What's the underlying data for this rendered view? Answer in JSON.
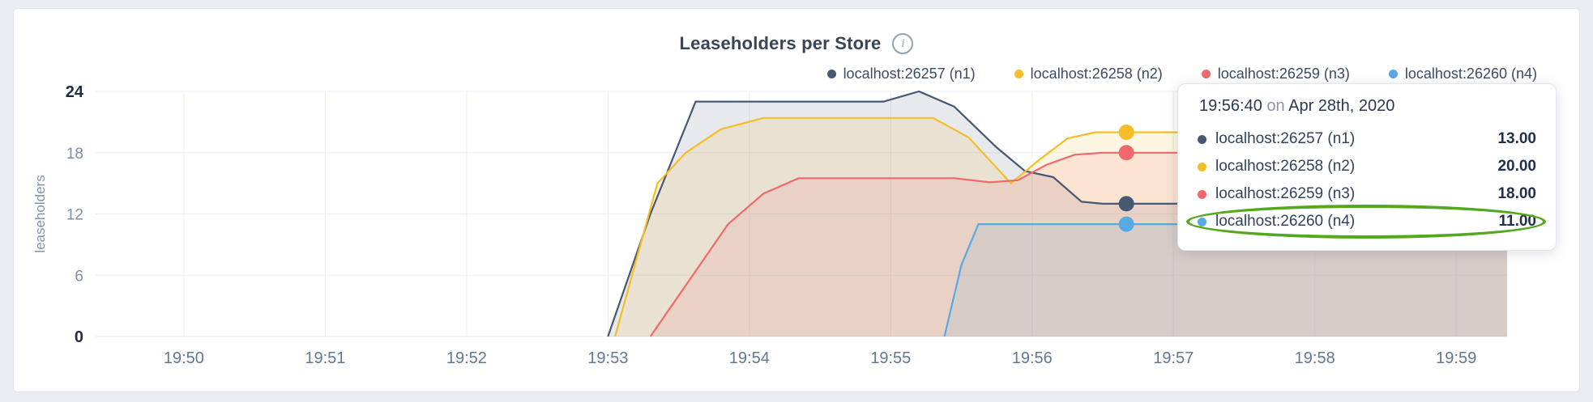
{
  "page": {
    "background": "#e9edf2"
  },
  "header": {
    "title": "Leaseholders per Store",
    "info_icon": "i"
  },
  "chart_data": {
    "type": "area",
    "title": "Leaseholders per Store",
    "ylabel": "leaseholders",
    "xlabel": "",
    "legend_position": "top-right",
    "grid": true,
    "grid_color": "#e9edf3",
    "fill_opacity": 0.13,
    "xlim": [
      49.37,
      59.36
    ],
    "ylim": [
      0,
      24
    ],
    "x_ticks": [
      {
        "t": 50,
        "label": "19:50"
      },
      {
        "t": 51,
        "label": "19:51"
      },
      {
        "t": 52,
        "label": "19:52"
      },
      {
        "t": 53,
        "label": "19:53"
      },
      {
        "t": 54,
        "label": "19:54"
      },
      {
        "t": 55,
        "label": "19:55"
      },
      {
        "t": 56,
        "label": "19:56"
      },
      {
        "t": 57,
        "label": "19:57"
      },
      {
        "t": 58,
        "label": "19:58"
      },
      {
        "t": 59,
        "label": "19:59"
      }
    ],
    "y_ticks": [
      {
        "v": 0,
        "label": "0",
        "bold": true
      },
      {
        "v": 6,
        "label": "6",
        "bold": false
      },
      {
        "v": 12,
        "label": "12",
        "bold": false
      },
      {
        "v": 18,
        "label": "18",
        "bold": false
      },
      {
        "v": 24,
        "label": "24",
        "bold": true
      }
    ],
    "series": [
      {
        "name": "localhost:26257 (n1)",
        "color": "#475872",
        "points": [
          [
            53.0,
            0
          ],
          [
            53.3,
            12
          ],
          [
            53.62,
            23
          ],
          [
            54.95,
            23
          ],
          [
            55.2,
            24
          ],
          [
            55.45,
            22.5
          ],
          [
            55.75,
            18.5
          ],
          [
            55.95,
            16.2
          ],
          [
            56.15,
            15.6
          ],
          [
            56.35,
            13.2
          ],
          [
            56.5,
            13
          ],
          [
            59.36,
            13
          ]
        ]
      },
      {
        "name": "localhost:26258 (n2)",
        "color": "#f5bd27",
        "points": [
          [
            53.05,
            0
          ],
          [
            53.35,
            15
          ],
          [
            53.55,
            18
          ],
          [
            53.8,
            20.3
          ],
          [
            54.1,
            21.4
          ],
          [
            55.3,
            21.4
          ],
          [
            55.55,
            19.5
          ],
          [
            55.85,
            15.0
          ],
          [
            56.05,
            17.3
          ],
          [
            56.25,
            19.4
          ],
          [
            56.45,
            20
          ],
          [
            59.36,
            20
          ]
        ]
      },
      {
        "name": "localhost:26259 (n3)",
        "color": "#f0696c",
        "points": [
          [
            53.3,
            0
          ],
          [
            53.6,
            6
          ],
          [
            53.85,
            11
          ],
          [
            54.1,
            14
          ],
          [
            54.35,
            15.5
          ],
          [
            55.45,
            15.5
          ],
          [
            55.7,
            15.1
          ],
          [
            55.9,
            15.3
          ],
          [
            56.1,
            16.8
          ],
          [
            56.3,
            17.8
          ],
          [
            56.5,
            18
          ],
          [
            59.36,
            18
          ]
        ]
      },
      {
        "name": "localhost:26260 (n4)",
        "color": "#59a9e3",
        "points": [
          [
            55.38,
            0
          ],
          [
            55.5,
            7
          ],
          [
            55.62,
            11
          ],
          [
            59.36,
            11
          ]
        ]
      }
    ],
    "hover": {
      "time": 56.667,
      "values": [
        13,
        20,
        18,
        11
      ]
    }
  },
  "tooltip": {
    "time": "19:56:40",
    "connector": "on",
    "date": "Apr 28th, 2020",
    "rows": [
      {
        "label": "localhost:26257 (n1)",
        "value": "13.00"
      },
      {
        "label": "localhost:26258 (n2)",
        "value": "20.00"
      },
      {
        "label": "localhost:26259 (n3)",
        "value": "18.00"
      },
      {
        "label": "localhost:26260 (n4)",
        "value": "11.00"
      }
    ],
    "highlighted_row": 3,
    "highlight_color": "#54a81d"
  }
}
